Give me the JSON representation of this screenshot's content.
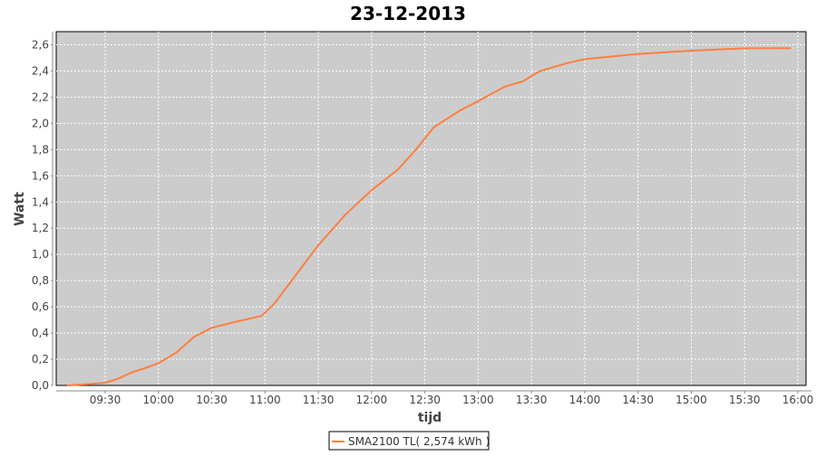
{
  "chart_data": {
    "type": "line",
    "title": "23-12-2013",
    "xlabel": "tijd",
    "ylabel": "Watt",
    "xlim": [
      "09:02",
      "16:05"
    ],
    "ylim": [
      0,
      2.7
    ],
    "x_ticks": [
      "09:30",
      "10:00",
      "10:30",
      "11:00",
      "11:30",
      "12:00",
      "12:30",
      "13:00",
      "13:30",
      "14:00",
      "14:30",
      "15:00",
      "15:30",
      "16:00"
    ],
    "y_ticks": [
      "0,0",
      "0,2",
      "0,4",
      "0,6",
      "0,8",
      "1,0",
      "1,2",
      "1,4",
      "1,6",
      "1,8",
      "2,0",
      "2,2",
      "2,4",
      "2,6"
    ],
    "grid": true,
    "legend_position": "bottom",
    "plot_background": "#cccccc",
    "series": [
      {
        "name": "SMA2100 TL( 2,574 kWh )",
        "color": "#ff7f3f",
        "x": [
          "09:09",
          "09:20",
          "09:30",
          "09:37",
          "09:45",
          "09:52",
          "10:00",
          "10:10",
          "10:20",
          "10:30",
          "10:45",
          "10:58",
          "11:05",
          "11:15",
          "11:30",
          "11:45",
          "12:00",
          "12:15",
          "12:25",
          "12:35",
          "12:50",
          "13:00",
          "13:15",
          "13:25",
          "13:35",
          "13:50",
          "14:00",
          "14:30",
          "15:00",
          "15:30",
          "15:56"
        ],
        "y": [
          0.0,
          0.01,
          0.02,
          0.05,
          0.1,
          0.13,
          0.17,
          0.25,
          0.37,
          0.44,
          0.49,
          0.53,
          0.62,
          0.8,
          1.07,
          1.3,
          1.49,
          1.65,
          1.8,
          1.97,
          2.1,
          2.17,
          2.28,
          2.32,
          2.4,
          2.46,
          2.49,
          2.53,
          2.555,
          2.573,
          2.574
        ]
      }
    ]
  }
}
